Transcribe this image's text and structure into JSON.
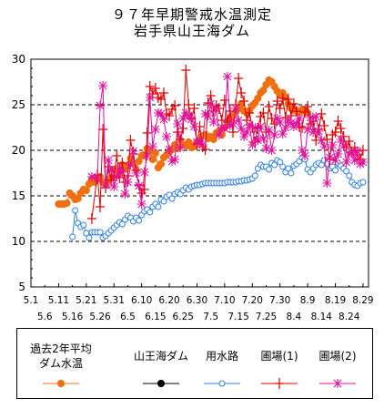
{
  "title_line1": "９７年早期警戒水温測定",
  "title_line2": "岩手県山王海ダム",
  "chart_data": {
    "type": "line",
    "ylim": [
      5,
      30
    ],
    "yticks": [
      5,
      10,
      15,
      20,
      25,
      30
    ],
    "grid_dashed_y": [
      10,
      15,
      20,
      25
    ],
    "x_tick_labels_top": [
      "5.1",
      "5.11",
      "5.21",
      "5.31",
      "6.10",
      "6.20",
      "6.30",
      "7.10",
      "7.20",
      "7.30",
      "8.9",
      "8.19",
      "8.29"
    ],
    "x_tick_labels_bottom": [
      "5.6",
      "5.16",
      "5.26",
      "6.5",
      "6.15",
      "6.25",
      "7.5",
      "7.15",
      "7.25",
      "8.4",
      "8.14",
      "8.24"
    ],
    "x_range_days": [
      0,
      122
    ],
    "legend": [
      {
        "name_line1": "過去2年平均",
        "name_line2": "ダム水温",
        "color": "#f07010",
        "marker": "dot"
      },
      {
        "name_line1": "山王海ダム",
        "name_line2": "",
        "color": "#000000",
        "marker": "dot"
      },
      {
        "name_line1": "用水路",
        "name_line2": "",
        "color": "#3080e0",
        "marker": "circle"
      },
      {
        "name_line1": "圃場(1)",
        "name_line2": "",
        "color": "#e00000",
        "marker": "plus"
      },
      {
        "name_line1": "圃場(2)",
        "name_line2": "",
        "color": "#e0109a",
        "marker": "star"
      }
    ],
    "series": [
      {
        "name": "過去2年平均ダム水温",
        "x": [
          10,
          11,
          12,
          13,
          14,
          15,
          16,
          17,
          18,
          19,
          20,
          21,
          22,
          23,
          24,
          25,
          26,
          27,
          28,
          29,
          30,
          31,
          32,
          33,
          34,
          35,
          36,
          37,
          38,
          39,
          40,
          41,
          42,
          43,
          44,
          45,
          46,
          47,
          48,
          49,
          50,
          51,
          52,
          53,
          54,
          55,
          56,
          57,
          58,
          59,
          60,
          61,
          62,
          63,
          64,
          65,
          66,
          67,
          68,
          69,
          70,
          71,
          72,
          73,
          74,
          75,
          76,
          77,
          78,
          79,
          80,
          81,
          82,
          83,
          84,
          85,
          86,
          87,
          88,
          89,
          90,
          91,
          92,
          93,
          94,
          95,
          96,
          97,
          98,
          99,
          100
        ],
        "y": [
          14.1,
          14.1,
          14.1,
          14.2,
          15.3,
          15.0,
          14.6,
          14.7,
          15.3,
          15.7,
          15.6,
          16.3,
          16.8,
          16.5,
          16.9,
          17.1,
          16.5,
          16.2,
          16.7,
          17.0,
          17.9,
          17.7,
          17.5,
          18.4,
          18.0,
          18.3,
          19.1,
          18.6,
          17.9,
          18.8,
          19.4,
          19.5,
          20.2,
          19.9,
          19.0,
          19.7,
          18.1,
          18.5,
          19.2,
          19.5,
          19.8,
          20.1,
          20.6,
          20.2,
          21.1,
          20.6,
          20.5,
          20.9,
          20.3,
          20.4,
          20.9,
          21.0,
          21.6,
          21.7,
          21.3,
          21.5,
          21.2,
          21.9,
          22.1,
          21.7,
          22.5,
          23.2,
          23.6,
          23.8,
          24.2,
          24.6,
          25.1,
          24.3,
          24.1,
          24.4,
          24.9,
          25.2,
          25.7,
          26.3,
          26.6,
          27.2,
          27.7,
          27.5,
          27.0,
          26.5,
          26.1,
          26.3,
          25.8,
          25.1,
          24.6,
          24.4,
          24.3,
          24.2,
          24.5,
          24.3,
          24.1
        ]
      },
      {
        "name": "用水路",
        "x": [
          15,
          16,
          17,
          18,
          19,
          20,
          21,
          22,
          23,
          24,
          25,
          26,
          27,
          28,
          29,
          30,
          31,
          32,
          33,
          34,
          35,
          36,
          37,
          38,
          39,
          40,
          41,
          42,
          43,
          44,
          45,
          46,
          47,
          48,
          49,
          50,
          51,
          52,
          53,
          54,
          55,
          56,
          57,
          58,
          59,
          60,
          61,
          62,
          63,
          64,
          65,
          66,
          67,
          68,
          69,
          70,
          71,
          72,
          73,
          74,
          75,
          76,
          77,
          78,
          79,
          80,
          81,
          82,
          83,
          84,
          85,
          86,
          87,
          88,
          89,
          90,
          91,
          92,
          93,
          94,
          95,
          96,
          97,
          98,
          99,
          100,
          101,
          102,
          103,
          104,
          105,
          106,
          107,
          108,
          109,
          110,
          111,
          112,
          113,
          114,
          115,
          116,
          117,
          118,
          119,
          120
        ],
        "y": [
          10.5,
          13.4,
          12.0,
          11.6,
          11.8,
          10.9,
          10.4,
          11.0,
          11.0,
          11.0,
          11.0,
          10.4,
          10.6,
          10.9,
          11.2,
          11.5,
          11.8,
          12.1,
          11.9,
          12.4,
          12.8,
          12.6,
          12.2,
          12.6,
          12.3,
          12.9,
          13.3,
          13.5,
          13.2,
          13.8,
          14.1,
          13.8,
          14.6,
          14.4,
          14.9,
          15.1,
          14.7,
          15.2,
          15.4,
          15.2,
          15.6,
          15.9,
          15.7,
          16.0,
          16.1,
          16.2,
          16.2,
          16.3,
          16.4,
          16.4,
          16.4,
          16.4,
          16.4,
          16.4,
          16.4,
          16.4,
          16.5,
          16.5,
          16.5,
          16.5,
          16.6,
          16.6,
          16.7,
          16.7,
          16.8,
          16.9,
          17.2,
          18.0,
          18.4,
          18.2,
          18.2,
          17.9,
          18.6,
          18.4,
          18.9,
          18.7,
          18.2,
          17.6,
          18.0,
          17.5,
          18.3,
          18.5,
          18.8,
          19.2,
          19.0,
          17.9,
          17.6,
          18.0,
          18.4,
          18.6,
          18.4,
          18.9,
          18.5,
          18.0,
          18.2,
          17.8,
          18.6,
          18.3,
          18.0,
          17.7,
          17.2,
          16.5,
          16.2,
          16.1,
          16.4,
          16.5
        ]
      },
      {
        "name": "圃場(1)",
        "x": [
          22,
          24,
          25,
          26,
          27,
          28,
          29,
          30,
          31,
          32,
          33,
          34,
          35,
          36,
          37,
          38,
          39,
          40,
          41,
          42,
          43,
          44,
          45,
          46,
          47,
          48,
          49,
          50,
          51,
          52,
          53,
          54,
          55,
          56,
          57,
          58,
          59,
          60,
          61,
          62,
          63,
          64,
          65,
          66,
          67,
          68,
          69,
          70,
          71,
          72,
          73,
          74,
          75,
          76,
          77,
          78,
          79,
          80,
          81,
          82,
          83,
          84,
          85,
          86,
          87,
          88,
          89,
          90,
          91,
          92,
          93,
          94,
          95,
          96,
          97,
          98,
          99,
          100,
          101,
          102,
          103,
          104,
          105,
          106,
          107,
          108,
          109,
          110,
          111,
          112,
          113,
          114,
          115,
          116,
          117,
          118,
          119,
          120
        ],
        "y": [
          12.5,
          17.3,
          13.8,
          22.3,
          15.9,
          18.2,
          16.7,
          17.2,
          19.4,
          17.0,
          18.6,
          16.5,
          17.2,
          21.1,
          19.6,
          17.8,
          16.2,
          15.3,
          15.7,
          21.9,
          27.0,
          26.2,
          26.8,
          25.8,
          25.6,
          26.3,
          24.0,
          23.8,
          24.5,
          24.9,
          22.0,
          21.2,
          22.4,
          28.8,
          25.0,
          23.5,
          24.6,
          20.7,
          22.6,
          20.4,
          20.1,
          25.2,
          26.0,
          24.3,
          24.9,
          24.6,
          23.3,
          25.5,
          23.1,
          24.3,
          22.0,
          25.0,
          27.9,
          26.3,
          25.4,
          23.3,
          24.1,
          22.5,
          20.9,
          22.4,
          23.7,
          24.1,
          22.0,
          24.8,
          23.5,
          22.9,
          25.4,
          24.6,
          25.7,
          23.6,
          25.6,
          23.8,
          25.1,
          24.3,
          22.6,
          22.5,
          24.2,
          24.8,
          22.9,
          23.2,
          21.1,
          22.3,
          24.0,
          22.7,
          21.2,
          19.0,
          21.7,
          22.0,
          23.2,
          22.4,
          21.5,
          20.3,
          21.0,
          19.8,
          20.3,
          19.5,
          19.0,
          20.0
        ]
      },
      {
        "name": "圃場(2)",
        "x": [
          22,
          24,
          25,
          26,
          27,
          28,
          29,
          30,
          31,
          32,
          33,
          34,
          35,
          36,
          37,
          38,
          39,
          40,
          41,
          42,
          43,
          44,
          45,
          46,
          47,
          48,
          49,
          50,
          51,
          52,
          53,
          54,
          55,
          56,
          57,
          58,
          59,
          60,
          61,
          62,
          63,
          64,
          65,
          66,
          67,
          68,
          69,
          70,
          71,
          72,
          73,
          74,
          75,
          76,
          77,
          78,
          79,
          80,
          81,
          82,
          83,
          84,
          85,
          86,
          87,
          88,
          89,
          90,
          91,
          92,
          93,
          94,
          95,
          96,
          97,
          98,
          99,
          100,
          101,
          102,
          103,
          104,
          105,
          106,
          107,
          108,
          109,
          110,
          111,
          112,
          113,
          114,
          115,
          116,
          117,
          118,
          119,
          120
        ],
        "y": [
          17.1,
          16.9,
          24.9,
          27.1,
          16.2,
          18.9,
          17.8,
          16.0,
          17.1,
          18.0,
          17.6,
          15.2,
          16.5,
          18.4,
          19.9,
          17.5,
          16.1,
          14.1,
          17.6,
          19.4,
          25.8,
          20.4,
          22.3,
          24.1,
          24.0,
          23.4,
          21.5,
          20.1,
          18.8,
          19.0,
          22.9,
          20.3,
          23.5,
          24.1,
          23.8,
          23.4,
          22.6,
          20.9,
          21.0,
          20.6,
          24.0,
          23.8,
          25.1,
          23.1,
          24.6,
          21.7,
          22.5,
          22.4,
          28.1,
          22.7,
          22.9,
          24.6,
          23.3,
          22.4,
          21.5,
          22.0,
          22.8,
          20.6,
          22.5,
          21.1,
          22.6,
          21.3,
          20.2,
          22.2,
          20.0,
          21.7,
          23.5,
          23.1,
          21.8,
          22.5,
          23.3,
          23.0,
          22.6,
          22.9,
          23.5,
          20.0,
          19.4,
          22.3,
          23.6,
          22.0,
          23.7,
          22.1,
          21.1,
          20.4,
          16.4,
          19.2,
          20.6,
          18.9,
          19.6,
          21.2,
          20.5,
          18.7,
          19.6,
          19.8,
          18.9,
          19.9,
          18.5,
          18.7
        ]
      }
    ]
  }
}
